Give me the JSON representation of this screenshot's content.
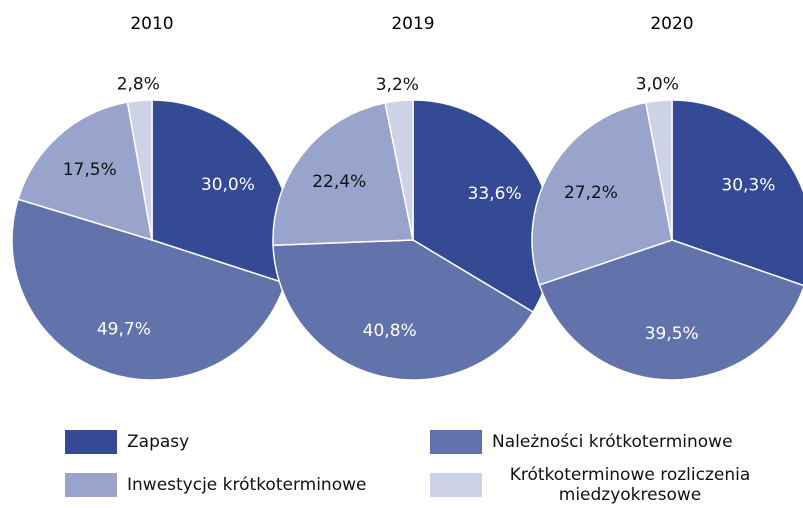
{
  "chart_data": [
    {
      "type": "pie",
      "title": "2010",
      "categories": [
        "Zapasy",
        "Należności krótkoterminowe",
        "Inwestycje krótkoterminowe",
        "Krótkoterminowe rozliczenia miedzyokresowe"
      ],
      "values": [
        30.0,
        49.7,
        17.5,
        2.8
      ],
      "value_labels": [
        "30,0%",
        "49,7%",
        "17,5%",
        "2,8%"
      ],
      "colors": [
        "#354a94",
        "#6272ab",
        "#98a4cb",
        "#cdd2e6"
      ]
    },
    {
      "type": "pie",
      "title": "2019",
      "categories": [
        "Zapasy",
        "Należności krótkoterminowe",
        "Inwestycje krótkoterminowe",
        "Krótkoterminowe rozliczenia miedzyokresowe"
      ],
      "values": [
        33.6,
        40.8,
        22.4,
        3.2
      ],
      "value_labels": [
        "33,6%",
        "40,8%",
        "22,4%",
        "3,2%"
      ],
      "colors": [
        "#354a94",
        "#6272ab",
        "#98a4cb",
        "#cdd2e6"
      ]
    },
    {
      "type": "pie",
      "title": "2020",
      "categories": [
        "Zapasy",
        "Należności krótkoterminowe",
        "Inwestycje krótkoterminowe",
        "Krótkoterminowe rozliczenia miedzyokresowe"
      ],
      "values": [
        30.3,
        39.5,
        27.2,
        3.0
      ],
      "value_labels": [
        "30,3%",
        "39,5%",
        "27,2%",
        "3,0%"
      ],
      "colors": [
        "#354a94",
        "#6272ab",
        "#98a4cb",
        "#cdd2e6"
      ]
    }
  ]
}
